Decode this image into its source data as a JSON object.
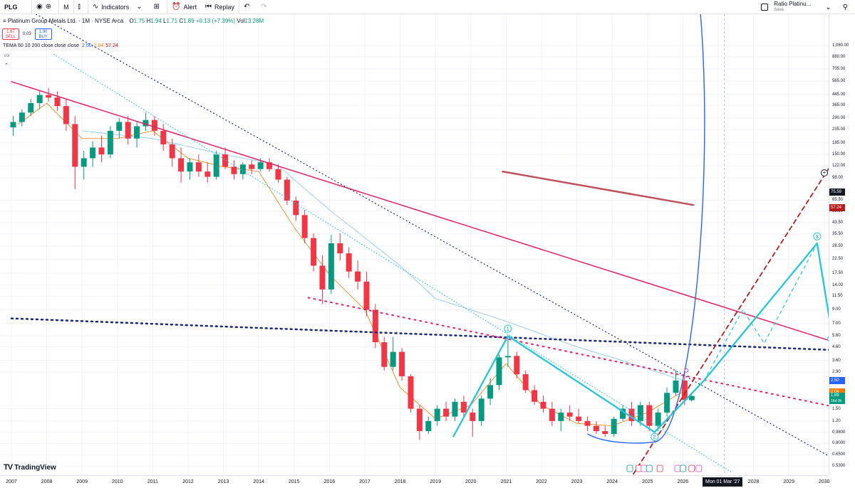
{
  "toolbar": {
    "symbol": "PLG",
    "interval": "M",
    "indicators_label": "Indicators",
    "alert_label": "Alert",
    "replay_label": "Replay",
    "layout_name": "Ratio Platinu...",
    "layout_save": "Save"
  },
  "legend": {
    "title": "Platinum Group Metals Ltd. · 1M · NYSE Arca",
    "open_label": "O",
    "open": "1.75",
    "high_label": "H",
    "high": "1.94",
    "low_label": "L",
    "low": "1.71",
    "close_label": "C",
    "close": "1.89",
    "change": "+0.13 (+7.39%)",
    "vol_label": "Vol",
    "vol": "13.28M",
    "sell_price": "1.87",
    "sell_label": "SELL",
    "spread": "0.03",
    "buy_price": "1.90",
    "buy_label": "BUY",
    "indicator": "TEMA 50 10 200 close close close",
    "ind_v1": "2.50",
    "ind_v2": "2.04",
    "ind_v3": "57.24",
    "volume_pane": "Vol"
  },
  "colors": {
    "up": "#089981",
    "down": "#f23645",
    "trend": "#e91e63",
    "wave": "#26c6da",
    "navy": "#1a237e",
    "blue": "#2962ff",
    "orange": "#f57c00",
    "darkred": "#b22222"
  },
  "chart_data": {
    "type": "candlestick",
    "scale": "log",
    "ylim": [
      0.45,
      1900
    ],
    "xlim": [
      2007.0,
      2030.2
    ],
    "x_ticks": [
      "2007",
      "2008",
      "2009",
      "2010",
      "2011",
      "2012",
      "2013",
      "2014",
      "2015",
      "2016",
      "2017",
      "2018",
      "2019",
      "2020",
      "2021",
      "2022",
      "2023",
      "2024",
      "2025",
      "2026",
      "2027",
      "2028",
      "2029",
      "2030"
    ],
    "y_ticks": [
      "1,080.00",
      "880.00",
      "705.00",
      "565.00",
      "445.00",
      "365.00",
      "290.00",
      "235.00",
      "185.00",
      "150.00",
      "122.00",
      "98.00",
      "65.50",
      "53.50",
      "43.50",
      "35.50",
      "28.50",
      "22.50",
      "17.50",
      "14.00",
      "11.50",
      "9.00",
      "7.00",
      "5.60",
      "4.60",
      "3.60",
      "2.90",
      "1.50",
      "1.20",
      "0.9800",
      "0.8000",
      "0.6500",
      "0.5300"
    ],
    "ohlc": [
      [
        2007.05,
        245,
        300,
        210,
        270
      ],
      [
        2007.3,
        270,
        340,
        250,
        320
      ],
      [
        2007.55,
        320,
        410,
        300,
        380
      ],
      [
        2007.8,
        380,
        480,
        340,
        440
      ],
      [
        2008.05,
        440,
        500,
        390,
        420
      ],
      [
        2008.3,
        420,
        470,
        330,
        360
      ],
      [
        2008.55,
        360,
        410,
        230,
        260
      ],
      [
        2008.8,
        260,
        300,
        80,
        120
      ],
      [
        2009.05,
        120,
        160,
        95,
        140
      ],
      [
        2009.3,
        140,
        190,
        120,
        170
      ],
      [
        2009.55,
        170,
        210,
        130,
        150
      ],
      [
        2009.8,
        150,
        250,
        140,
        230
      ],
      [
        2010.05,
        230,
        290,
        200,
        270
      ],
      [
        2010.3,
        270,
        300,
        180,
        200
      ],
      [
        2010.55,
        200,
        270,
        170,
        250
      ],
      [
        2010.8,
        250,
        320,
        230,
        280
      ],
      [
        2011.05,
        280,
        300,
        210,
        230
      ],
      [
        2011.3,
        230,
        260,
        160,
        180
      ],
      [
        2011.55,
        180,
        200,
        120,
        140
      ],
      [
        2011.8,
        140,
        170,
        90,
        110
      ],
      [
        2012.05,
        110,
        140,
        95,
        130
      ],
      [
        2012.3,
        130,
        150,
        100,
        110
      ],
      [
        2012.55,
        110,
        130,
        90,
        100
      ],
      [
        2012.8,
        100,
        160,
        95,
        150
      ],
      [
        2013.05,
        150,
        170,
        115,
        120
      ],
      [
        2013.3,
        120,
        135,
        95,
        105
      ],
      [
        2013.55,
        105,
        130,
        95,
        125
      ],
      [
        2013.8,
        125,
        135,
        105,
        115
      ],
      [
        2014.05,
        115,
        140,
        110,
        130
      ],
      [
        2014.3,
        130,
        140,
        110,
        115
      ],
      [
        2014.55,
        115,
        125,
        90,
        95
      ],
      [
        2014.8,
        95,
        100,
        60,
        65
      ],
      [
        2015.05,
        65,
        70,
        45,
        50
      ],
      [
        2015.3,
        50,
        55,
        30,
        33
      ],
      [
        2015.55,
        33,
        36,
        18,
        20
      ],
      [
        2015.8,
        20,
        24,
        10,
        13
      ],
      [
        2016.05,
        13,
        35,
        12,
        30
      ],
      [
        2016.3,
        30,
        36,
        22,
        25
      ],
      [
        2016.55,
        25,
        28,
        16,
        18
      ],
      [
        2016.8,
        18,
        22,
        13,
        15
      ],
      [
        2017.05,
        15,
        18,
        8,
        9
      ],
      [
        2017.3,
        9,
        10,
        4.5,
        5
      ],
      [
        2017.55,
        5,
        5.5,
        3.0,
        3.2
      ],
      [
        2017.8,
        3.2,
        5.5,
        3.0,
        4.2
      ],
      [
        2018.05,
        4.2,
        4.5,
        2.5,
        2.7
      ],
      [
        2018.3,
        2.7,
        2.8,
        1.4,
        1.5
      ],
      [
        2018.55,
        1.5,
        1.6,
        0.85,
        1.0
      ],
      [
        2018.8,
        1.0,
        1.3,
        0.95,
        1.2
      ],
      [
        2019.05,
        1.2,
        1.6,
        1.1,
        1.5
      ],
      [
        2019.3,
        1.5,
        1.7,
        1.2,
        1.3
      ],
      [
        2019.55,
        1.3,
        1.8,
        1.2,
        1.7
      ],
      [
        2019.8,
        1.7,
        1.9,
        1.3,
        1.4
      ],
      [
        2020.05,
        1.4,
        1.5,
        0.9,
        1.2
      ],
      [
        2020.3,
        1.2,
        1.9,
        1.1,
        1.8
      ],
      [
        2020.55,
        1.8,
        2.6,
        1.6,
        2.3
      ],
      [
        2020.8,
        2.3,
        4.0,
        2.1,
        3.8
      ],
      [
        2021.05,
        3.8,
        5.6,
        3.2,
        3.9
      ],
      [
        2021.3,
        3.9,
        4.2,
        2.6,
        2.8
      ],
      [
        2021.55,
        2.8,
        3.0,
        2.0,
        2.1
      ],
      [
        2021.8,
        2.1,
        2.3,
        1.6,
        1.7
      ],
      [
        2022.05,
        1.7,
        1.9,
        1.4,
        1.5
      ],
      [
        2022.3,
        1.5,
        1.7,
        1.1,
        1.2
      ],
      [
        2022.55,
        1.2,
        1.5,
        1.0,
        1.4
      ],
      [
        2022.8,
        1.4,
        1.6,
        1.2,
        1.3
      ],
      [
        2023.05,
        1.3,
        1.5,
        1.15,
        1.2
      ],
      [
        2023.3,
        1.2,
        1.3,
        1.0,
        1.1
      ],
      [
        2023.55,
        1.1,
        1.2,
        0.95,
        1.0
      ],
      [
        2023.8,
        1.0,
        1.1,
        0.9,
        0.95
      ],
      [
        2024.05,
        0.95,
        1.3,
        0.9,
        1.25
      ],
      [
        2024.3,
        1.25,
        1.6,
        1.2,
        1.5
      ],
      [
        2024.55,
        1.5,
        1.7,
        1.1,
        1.2
      ],
      [
        2024.8,
        1.2,
        1.7,
        1.1,
        1.6
      ],
      [
        2025.05,
        1.6,
        1.7,
        1.0,
        1.1
      ],
      [
        2025.3,
        1.1,
        1.5,
        1.0,
        1.4
      ],
      [
        2025.55,
        1.4,
        2.2,
        1.3,
        2.0
      ],
      [
        2025.8,
        2.0,
        3.0,
        1.9,
        2.5
      ],
      [
        2026.05,
        2.5,
        3.1,
        1.6,
        1.76
      ],
      [
        2026.25,
        1.75,
        1.94,
        1.71,
        1.89
      ]
    ],
    "tema": [
      [
        2007.2,
        260
      ],
      [
        2008,
        380
      ],
      [
        2009,
        200
      ],
      [
        2010,
        200
      ],
      [
        2011,
        230
      ],
      [
        2012,
        140
      ],
      [
        2013,
        120
      ],
      [
        2014,
        110
      ],
      [
        2015,
        40
      ],
      [
        2016,
        17
      ],
      [
        2017,
        9
      ],
      [
        2018,
        2.2
      ],
      [
        2019,
        1.25
      ],
      [
        2020,
        1.6
      ],
      [
        2021,
        3.4
      ],
      [
        2022,
        1.6
      ],
      [
        2023,
        1.15
      ],
      [
        2024,
        1.1
      ],
      [
        2025,
        1.4
      ],
      [
        2026,
        2.04
      ]
    ],
    "sma": [
      [
        2009,
        230
      ],
      [
        2011,
        200
      ],
      [
        2013,
        150
      ],
      [
        2014.5,
        125
      ],
      [
        2016,
        55
      ],
      [
        2018,
        20
      ],
      [
        2019,
        11
      ],
      [
        2020,
        9
      ],
      [
        2021,
        7.3
      ],
      [
        2022,
        5.8
      ],
      [
        2023,
        4.6
      ],
      [
        2024,
        3.8
      ],
      [
        2025,
        3.1
      ],
      [
        2026,
        2.5
      ]
    ],
    "annotations": {
      "wave_labels": [
        "1",
        "2",
        "3",
        "4"
      ],
      "current_price": "1.89",
      "countdown": "16d 0h",
      "tema_fast": "2.50",
      "tema_mid": "2.04",
      "tema_slow": "57.24",
      "alert_level": "75.59"
    },
    "cursor_date": "Mon 01 Mar '27"
  }
}
